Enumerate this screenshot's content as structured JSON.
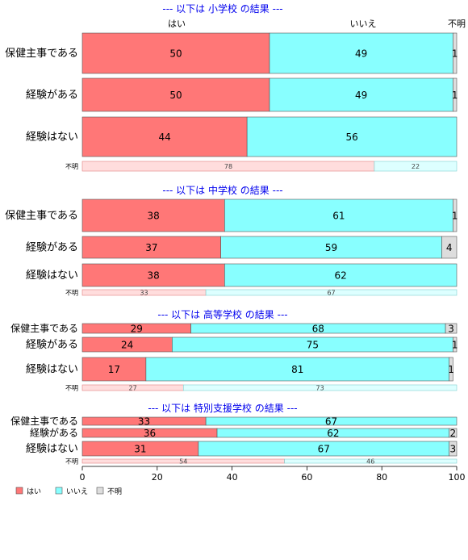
{
  "column_headers": [
    "はい",
    "いいえ",
    "不明"
  ],
  "legend": {
    "items": [
      {
        "label": "はい",
        "color": "#ff7777"
      },
      {
        "label": "いいえ",
        "color": "#88ffff"
      },
      {
        "label": "不明",
        "color": "#dddddd"
      }
    ]
  },
  "colors": {
    "yes": "#ff7777",
    "no": "#88ffff",
    "unknown": "#dddddd",
    "unknown_row_yes": "#ffdddd",
    "unknown_row_no": "#ddffff",
    "title": "#0000ee"
  },
  "chart_data": {
    "type": "bar",
    "orientation": "horizontal",
    "stacked": true,
    "xlim": [
      0,
      100
    ],
    "xticks": [
      0,
      20,
      40,
      60,
      80,
      100
    ],
    "categories": [
      "保健主事である",
      "経験がある",
      "経験はない"
    ],
    "series_names": [
      "はい",
      "いいえ",
      "不明"
    ],
    "panels": [
      {
        "title": "--- 以下は 小学校 の結果 ---",
        "rows": [
          {
            "label": "保健主事である",
            "values": [
              50,
              49,
              1
            ]
          },
          {
            "label": "経験がある",
            "values": [
              50,
              49,
              1
            ]
          },
          {
            "label": "経験はない",
            "values": [
              44,
              56,
              1
            ]
          }
        ],
        "unknown_row": {
          "label": "不明",
          "values": [
            78,
            22
          ]
        }
      },
      {
        "title": "--- 以下は 中学校 の結果 ---",
        "rows": [
          {
            "label": "保健主事である",
            "values": [
              38,
              61,
              1
            ]
          },
          {
            "label": "経験がある",
            "values": [
              37,
              59,
              4
            ]
          },
          {
            "label": "経験はない",
            "values": [
              38,
              62,
              1
            ]
          }
        ],
        "unknown_row": {
          "label": "不明",
          "values": [
            33,
            67
          ]
        }
      },
      {
        "title": "--- 以下は 高等学校 の結果 ---",
        "rows": [
          {
            "label": "保健主事である",
            "values": [
              29,
              68,
              3
            ]
          },
          {
            "label": "経験がある",
            "values": [
              24,
              75,
              1
            ]
          },
          {
            "label": "経験はない",
            "values": [
              17,
              81,
              1
            ]
          }
        ],
        "unknown_row": {
          "label": "不明",
          "values": [
            27,
            73
          ]
        }
      },
      {
        "title": "--- 以下は 特別支援学校 の結果 ---",
        "rows": [
          {
            "label": "保健主事である",
            "values": [
              33,
              67,
              0
            ]
          },
          {
            "label": "経験がある",
            "values": [
              36,
              62,
              2
            ]
          },
          {
            "label": "経験はない",
            "values": [
              31,
              67,
              3
            ]
          }
        ],
        "unknown_row": {
          "label": "不明",
          "values": [
            54,
            46
          ]
        }
      }
    ]
  }
}
